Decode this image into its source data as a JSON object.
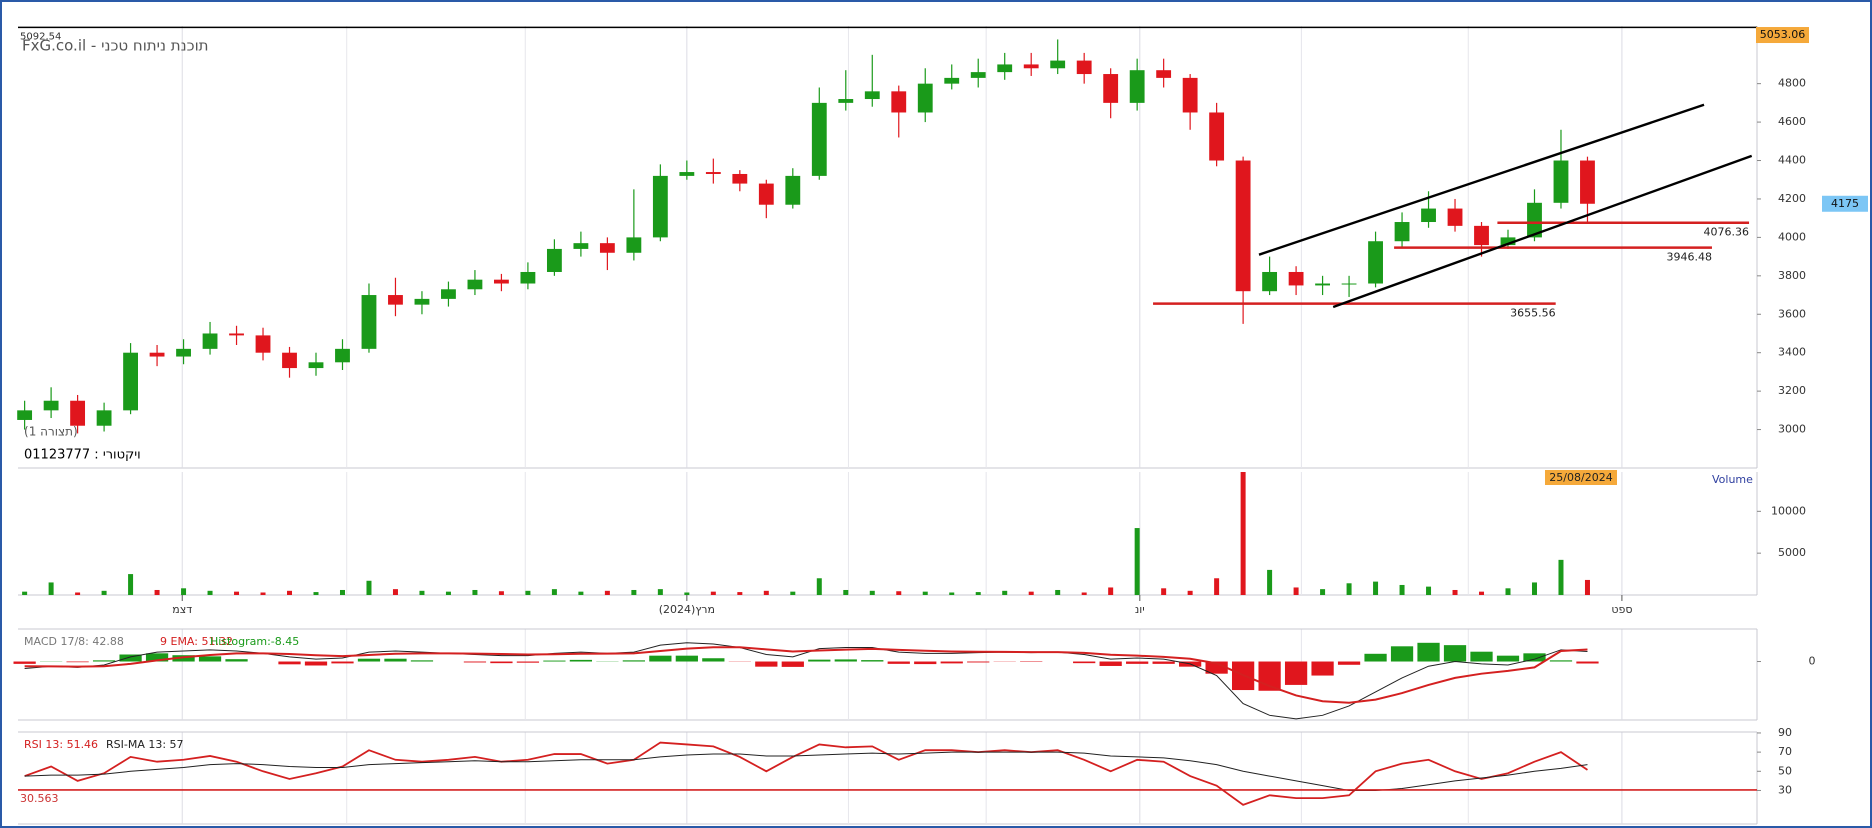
{
  "header": {
    "title": "FxG.co.il - תוכנת ניתוח טכני",
    "config": "(תצורה 1)",
    "symbol": "ויקטורי : 01123777"
  },
  "chart_data": [
    {
      "type": "candlestick",
      "xlim": [
        -0.25,
        65.4
      ],
      "xticks": [
        {
          "value": 5.95,
          "label": "דצמ"
        },
        {
          "value": 25.0,
          "label": "מרץ(2024)"
        },
        {
          "value": 42.1,
          "label": "יונ"
        },
        {
          "value": 60.3,
          "label": "ספט"
        }
      ],
      "minor_xticks": [
        12.16,
        18.9,
        31.1,
        36.3,
        48.2,
        54.5
      ],
      "ylim": [
        2800,
        5100
      ],
      "yticks": [
        3000,
        3200,
        3400,
        3600,
        3800,
        4000,
        4200,
        4400,
        4600,
        4800
      ],
      "up_color": "#1a9a1a",
      "down_color": "#e0161d",
      "open": [
        3050,
        3100,
        3150,
        3020,
        3100,
        3400,
        3380,
        3420,
        3500,
        3490,
        3400,
        3320,
        3350,
        3420,
        3700,
        3650,
        3680,
        3730,
        3780,
        3760,
        3820,
        3940,
        3970,
        3920,
        4000,
        4320,
        4340,
        4330,
        4280,
        4170,
        4320,
        4700,
        4720,
        4760,
        4650,
        4800,
        4830,
        4860,
        4900,
        4880,
        4920,
        4850,
        4700,
        4870,
        4830,
        4650,
        4400,
        3720,
        3820,
        3750,
        3760,
        3760,
        3980,
        4080,
        4150,
        4060,
        3960,
        4000,
        4180,
        4400
      ],
      "high": [
        3150,
        3220,
        3180,
        3140,
        3450,
        3440,
        3470,
        3560,
        3540,
        3530,
        3430,
        3400,
        3470,
        3760,
        3790,
        3720,
        3770,
        3830,
        3810,
        3870,
        3990,
        4030,
        4000,
        4250,
        4380,
        4400,
        4410,
        4350,
        4300,
        4360,
        4780,
        4870,
        4950,
        4790,
        4880,
        4900,
        4930,
        4960,
        4960,
        5030,
        4960,
        4880,
        4930,
        4930,
        4850,
        4700,
        4420,
        3900,
        3850,
        3800,
        3800,
        4030,
        4130,
        4240,
        4200,
        4080,
        4040,
        4250,
        4560,
        4420
      ],
      "low": [
        3000,
        3060,
        2980,
        2990,
        3080,
        3330,
        3340,
        3390,
        3440,
        3360,
        3270,
        3280,
        3310,
        3400,
        3590,
        3600,
        3640,
        3700,
        3720,
        3730,
        3800,
        3900,
        3830,
        3880,
        3980,
        4300,
        4280,
        4240,
        4100,
        4150,
        4300,
        4660,
        4680,
        4520,
        4600,
        4770,
        4780,
        4820,
        4840,
        4850,
        4800,
        4620,
        4660,
        4780,
        4560,
        4370,
        3550,
        3700,
        3700,
        3700,
        3690,
        3740,
        3950,
        4050,
        4030,
        3900,
        3940,
        3980,
        4150,
        4080
      ],
      "close": [
        3100,
        3150,
        3020,
        3100,
        3400,
        3380,
        3420,
        3500,
        3490,
        3400,
        3320,
        3350,
        3420,
        3700,
        3650,
        3680,
        3730,
        3780,
        3760,
        3820,
        3940,
        3970,
        3920,
        4000,
        4320,
        4340,
        4330,
        4280,
        4170,
        4320,
        4700,
        4720,
        4760,
        4650,
        4800,
        4830,
        4860,
        4900,
        4880,
        4920,
        4850,
        4700,
        4870,
        4830,
        4650,
        4400,
        3720,
        3820,
        3750,
        3760,
        3760,
        3980,
        4080,
        4150,
        4060,
        3960,
        4000,
        4180,
        4400,
        4175
      ],
      "top_line": 5092.54,
      "levels": [
        {
          "value": 3655.56,
          "x": [
            42.6,
            57.8
          ]
        },
        {
          "value": 3946.48,
          "x": [
            51.7,
            63.7
          ]
        },
        {
          "value": 4076.36,
          "x": [
            55.6,
            65.1
          ]
        }
      ],
      "level_color": "#d42020",
      "channel": [
        {
          "x": [
            46.6,
            63.4
          ],
          "y": [
            3910,
            4690
          ]
        },
        {
          "x": [
            49.4,
            65.2
          ],
          "y": [
            3638,
            4424
          ]
        }
      ],
      "price_markers": [
        {
          "value": 5053.06,
          "color": "#f5a93a"
        },
        {
          "value": 4175,
          "color": "#7cc6f5"
        }
      ]
    },
    {
      "type": "bar",
      "title": "Volume",
      "values": [
        400,
        1500,
        300,
        500,
        2500,
        600,
        800,
        500,
        400,
        300,
        500,
        350,
        600,
        1700,
        700,
        500,
        400,
        600,
        450,
        500,
        700,
        400,
        500,
        600,
        700,
        300,
        400,
        350,
        500,
        400,
        2000,
        600,
        500,
        450,
        400,
        300,
        350,
        500,
        400,
        600,
        300,
        900,
        8000,
        800,
        500,
        2000,
        14700,
        3000,
        900,
        700,
        1400,
        1600,
        1200,
        1000,
        600,
        400,
        800,
        1500,
        4200,
        1800
      ],
      "ylim": [
        0,
        14700
      ],
      "yticks": [
        5000,
        10000
      ],
      "date_marker": "25/08/2024",
      "date_marker_color": "#f5a93a"
    },
    {
      "type": "macd",
      "ylim": [
        -250,
        139
      ],
      "yticks": [
        0
      ],
      "series": [
        {
          "name": "MACD 17/8: 42.88",
          "color": "#222222",
          "values": [
            -30,
            -20,
            -25,
            -15,
            20,
            40,
            45,
            50,
            45,
            35,
            20,
            10,
            15,
            40,
            45,
            40,
            35,
            30,
            25,
            25,
            35,
            40,
            35,
            40,
            70,
            80,
            75,
            60,
            30,
            20,
            55,
            60,
            60,
            40,
            35,
            35,
            38,
            40,
            38,
            40,
            30,
            10,
            15,
            10,
            -10,
            -60,
            -180,
            -230,
            -245,
            -230,
            -190,
            -130,
            -70,
            -20,
            0,
            -10,
            -15,
            10,
            50,
            42.88
          ]
        },
        {
          "name": "9 EMA: 51.32",
          "color": "#d42020",
          "values": [
            -20,
            -21,
            -22,
            -20,
            -10,
            5,
            18,
            28,
            35,
            35,
            32,
            27,
            23,
            28,
            33,
            35,
            35,
            34,
            32,
            30,
            31,
            33,
            34,
            35,
            45,
            55,
            61,
            61,
            52,
            43,
            47,
            51,
            54,
            50,
            46,
            43,
            42,
            41,
            40,
            40,
            37,
            29,
            25,
            20,
            12,
            -8,
            -58,
            -105,
            -145,
            -170,
            -176,
            -163,
            -135,
            -100,
            -70,
            -52,
            -40,
            -25,
            45,
            51.32
          ]
        },
        {
          "name": "Histogram:-8.45",
          "color": "#1a9a1a",
          "negative_color": "#e0161d",
          "values": [
            -10,
            1,
            -3,
            5,
            30,
            35,
            27,
            22,
            10,
            0,
            -12,
            -17,
            -8,
            12,
            12,
            5,
            0,
            -4,
            -7,
            -5,
            4,
            7,
            1,
            5,
            25,
            25,
            14,
            -1,
            -22,
            -23,
            8,
            9,
            6,
            -10,
            -11,
            -8,
            -4,
            -1,
            -2,
            0,
            -7,
            -19,
            -10,
            -10,
            -22,
            -52,
            -122,
            -125,
            -100,
            -60,
            -14,
            33,
            65,
            80,
            70,
            42,
            25,
            35,
            5,
            -8.45
          ]
        }
      ]
    },
    {
      "type": "rsi",
      "ylim": [
        -5,
        91
      ],
      "yticks": [
        30,
        50,
        70,
        90
      ],
      "level": 30.563,
      "level_color": "#d42020",
      "series": [
        {
          "name": "RSI 13: 51.46",
          "color": "#d42020",
          "values": [
            45,
            55,
            40,
            48,
            65,
            60,
            62,
            66,
            60,
            50,
            42,
            48,
            55,
            72,
            62,
            60,
            62,
            65,
            60,
            62,
            68,
            68,
            58,
            62,
            80,
            78,
            76,
            65,
            50,
            65,
            78,
            75,
            76,
            62,
            72,
            72,
            70,
            72,
            70,
            72,
            62,
            50,
            62,
            60,
            45,
            35,
            15,
            25,
            22,
            22,
            25,
            50,
            58,
            62,
            50,
            42,
            48,
            60,
            70,
            51.46
          ]
        },
        {
          "name": "RSI-MA 13: 57",
          "color": "#222222",
          "values": [
            45,
            46,
            46,
            47,
            50,
            52,
            54,
            57,
            58,
            57,
            55,
            54,
            54,
            57,
            58,
            59,
            60,
            61,
            60,
            60,
            61,
            62,
            62,
            62,
            65,
            67,
            68,
            68,
            66,
            66,
            67,
            68,
            69,
            68,
            69,
            70,
            70,
            70,
            70,
            70,
            69,
            66,
            65,
            64,
            61,
            57,
            50,
            45,
            40,
            35,
            30,
            30,
            32,
            36,
            40,
            43,
            46,
            50,
            53,
            57
          ]
        }
      ]
    }
  ]
}
